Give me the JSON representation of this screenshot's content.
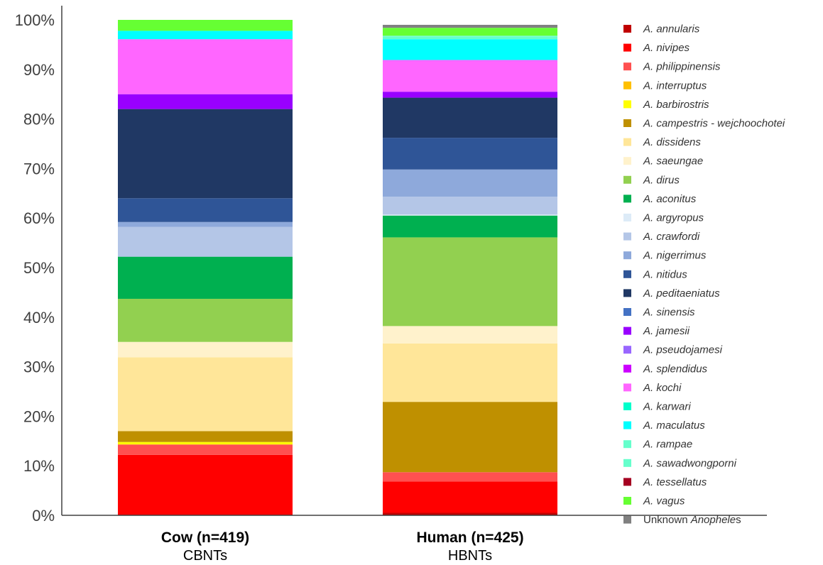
{
  "chart_data": {
    "type": "bar",
    "stacked": true,
    "percent": true,
    "y_ticks": [
      "0%",
      "10%",
      "20%",
      "30%",
      "40%",
      "50%",
      "60%",
      "70%",
      "80%",
      "90%",
      "100%"
    ],
    "ylim": [
      0,
      100
    ],
    "grid": false,
    "legend_position": "right",
    "categories": [
      {
        "label": "Cow (n=419)",
        "sublabel": "CBNTs"
      },
      {
        "label": "Human (n=425)",
        "sublabel": "HBNTs"
      }
    ],
    "series": [
      {
        "name": "A. annularis",
        "name_prefix": "",
        "name_italic": "A. annularis",
        "name_suffix": "",
        "color": "#C00000",
        "values": [
          0,
          0.5
        ]
      },
      {
        "name": "A. nivipes",
        "name_prefix": "",
        "name_italic": "A. nivipes",
        "name_suffix": "",
        "color": "#FF0000",
        "values": [
          12.2,
          6.3
        ]
      },
      {
        "name": "A. philippinensis",
        "name_prefix": "",
        "name_italic": "A. philippinensis",
        "name_suffix": "",
        "color": "#FF5050",
        "values": [
          2.1,
          1.9
        ]
      },
      {
        "name": "A. interruptus",
        "name_prefix": "",
        "name_italic": "A. interruptus",
        "name_suffix": "",
        "color": "#FFC000",
        "values": [
          0,
          0
        ]
      },
      {
        "name": "A. barbirostris",
        "name_prefix": "",
        "name_italic": "A. barbirostris",
        "name_suffix": "",
        "color": "#FFFF00",
        "values": [
          0.5,
          0
        ]
      },
      {
        "name": "A. campestris - wejchoochotei",
        "name_prefix": "",
        "name_italic": "A. campestris - wejchoochotei",
        "name_suffix": "",
        "color": "#BF9000",
        "values": [
          2.2,
          14.2
        ]
      },
      {
        "name": "A. dissidens",
        "name_prefix": "",
        "name_italic": "A. dissidens",
        "name_suffix": "",
        "color": "#FFE699",
        "values": [
          14.9,
          11.8
        ]
      },
      {
        "name": "A. saeungae",
        "name_prefix": "",
        "name_italic": "A. saeungae",
        "name_suffix": "",
        "color": "#FFF2CC",
        "values": [
          3.1,
          3.5
        ]
      },
      {
        "name": "A. dirus",
        "name_prefix": "",
        "name_italic": "A. dirus",
        "name_suffix": "",
        "color": "#92D050",
        "values": [
          8.7,
          17.9
        ]
      },
      {
        "name": "A. aconitus",
        "name_prefix": "",
        "name_italic": "A. aconitus",
        "name_suffix": "",
        "color": "#00B050",
        "values": [
          8.5,
          4.4
        ]
      },
      {
        "name": "A. argyropus",
        "name_prefix": "",
        "name_italic": "A. argyropus",
        "name_suffix": "",
        "color": "#DDEBF7",
        "values": [
          0,
          0.2
        ]
      },
      {
        "name": "A. crawfordi",
        "name_prefix": "",
        "name_italic": "A. crawfordi",
        "name_suffix": "",
        "color": "#B4C6E7",
        "values": [
          6.0,
          3.6
        ]
      },
      {
        "name": "A. nigerrimus",
        "name_prefix": "",
        "name_italic": "A. nigerrimus",
        "name_suffix": "",
        "color": "#8EA9DB",
        "values": [
          1.0,
          5.5
        ]
      },
      {
        "name": "A. nitidus",
        "name_prefix": "",
        "name_italic": "A. nitidus",
        "name_suffix": "",
        "color": "#2F5597",
        "values": [
          4.8,
          6.4
        ]
      },
      {
        "name": "A. peditaeniatus",
        "name_prefix": "",
        "name_italic": "A. peditaeniatus",
        "name_suffix": "",
        "color": "#203864",
        "values": [
          18.0,
          8.1
        ]
      },
      {
        "name": "A. sinensis",
        "name_prefix": "",
        "name_italic": "A. sinensis",
        "name_suffix": "",
        "color": "#4472C4",
        "values": [
          0,
          0
        ]
      },
      {
        "name": "A. jamesii",
        "name_prefix": "",
        "name_italic": "A. jamesii",
        "name_suffix": "",
        "color": "#9900FF",
        "values": [
          3.0,
          1.2
        ]
      },
      {
        "name": "A. pseudojamesi",
        "name_prefix": "",
        "name_italic": "A. pseudojamesi",
        "name_suffix": "",
        "color": "#9966FF",
        "values": [
          0,
          0
        ]
      },
      {
        "name": "A. splendidus",
        "name_prefix": "",
        "name_italic": "A. splendidus",
        "name_suffix": "",
        "color": "#CC00FF",
        "values": [
          0,
          0
        ]
      },
      {
        "name": "A. kochi",
        "name_prefix": "",
        "name_italic": "A. kochi",
        "name_suffix": "",
        "color": "#FF66FF",
        "values": [
          11.1,
          6.4
        ]
      },
      {
        "name": "A. karwari",
        "name_prefix": "",
        "name_italic": "A. karwari",
        "name_suffix": "",
        "color": "#00FFCC",
        "values": [
          0,
          0
        ]
      },
      {
        "name": "A. maculatus",
        "name_prefix": "",
        "name_italic": "A. maculatus",
        "name_suffix": "",
        "color": "#00FFFF",
        "values": [
          1.7,
          4.2
        ]
      },
      {
        "name": "A. rampae",
        "name_prefix": "",
        "name_italic": "A. rampae",
        "name_suffix": "",
        "color": "#66FFCC",
        "values": [
          0,
          0.5
        ]
      },
      {
        "name": "A. sawadwongporni",
        "name_prefix": "",
        "name_italic": "A. sawadwongporni",
        "name_suffix": "",
        "color": "#66FFCC",
        "values": [
          0,
          0.2
        ]
      },
      {
        "name": "A. tessellatus",
        "name_prefix": "",
        "name_italic": "A. tessellatus",
        "name_suffix": "",
        "color": "#A50021",
        "values": [
          0,
          0
        ]
      },
      {
        "name": "A. vagus",
        "name_prefix": "",
        "name_italic": "A. vagus",
        "name_suffix": "",
        "color": "#66FF33",
        "values": [
          2.2,
          1.6
        ]
      },
      {
        "name": "Unknown Anopheles",
        "name_prefix": "Unknown ",
        "name_italic": "Anophele",
        "name_suffix": "s",
        "color": "#808080",
        "values": [
          0,
          0.6
        ]
      }
    ]
  }
}
